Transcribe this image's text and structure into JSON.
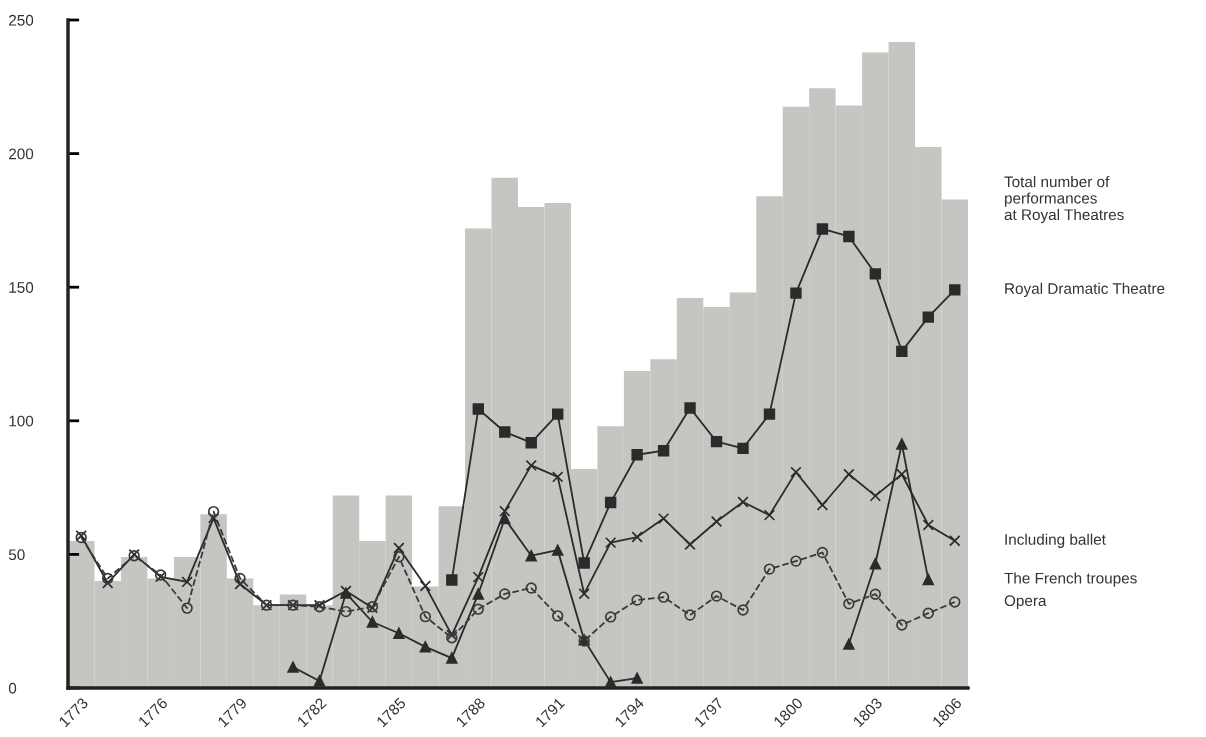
{
  "chart_data": {
    "type": "line",
    "x": [
      1773,
      1774,
      1775,
      1776,
      1777,
      1778,
      1779,
      1780,
      1781,
      1782,
      1783,
      1784,
      1785,
      1786,
      1787,
      1788,
      1789,
      1790,
      1791,
      1792,
      1793,
      1794,
      1795,
      1796,
      1797,
      1798,
      1799,
      1800,
      1801,
      1802,
      1803,
      1804,
      1805,
      1806
    ],
    "xlim": [
      1772.5,
      1806.5
    ],
    "xticks": [
      1773,
      1776,
      1779,
      1782,
      1785,
      1788,
      1791,
      1794,
      1797,
      1800,
      1803,
      1806
    ],
    "ylim": [
      0,
      250
    ],
    "yticks": [
      0,
      50,
      100,
      150,
      200,
      250
    ],
    "grid": false,
    "series": [
      {
        "name": "Total number of\nperformances\nat Royal Theatres",
        "type": "bar",
        "color": "#c4c6c2",
        "values": [
          55,
          40,
          49,
          41,
          49,
          65,
          41,
          31,
          35,
          31,
          72,
          55,
          72,
          38,
          68,
          172,
          191,
          180,
          181.5,
          82,
          98,
          118.6,
          123,
          146,
          142.6,
          148,
          184,
          217.5,
          224.5,
          218,
          237.8,
          241.8,
          202.5,
          182.8
        ]
      },
      {
        "name": "Royal Dramatic Theatre",
        "color": "#2b2b2b",
        "marker": "square",
        "line_style": "solid",
        "values": [
          null,
          null,
          null,
          null,
          null,
          null,
          null,
          null,
          null,
          null,
          null,
          null,
          null,
          null,
          40.4,
          104.4,
          95.8,
          91.8,
          102.5,
          46.8,
          69.4,
          87.3,
          88.8,
          104.8,
          92.2,
          89.7,
          102.5,
          147.8,
          171.8,
          169,
          155,
          126,
          138.8,
          149
        ]
      },
      {
        "name": "Including ballet",
        "color": "#2b2b2b",
        "marker": "cross",
        "line_style": "solid",
        "values": [
          57,
          39.3,
          50,
          41.6,
          39.7,
          63.6,
          38.9,
          31,
          31,
          31,
          36.3,
          30,
          52.4,
          38.2,
          19.8,
          41.5,
          66.2,
          83.3,
          79,
          35.3,
          54.4,
          56.5,
          63.4,
          53.7,
          62.3,
          69.6,
          64.7,
          80.8,
          68.5,
          80,
          71.9,
          80,
          61,
          55.1
        ]
      },
      {
        "name": "The French troupes",
        "color": "#2b2b2b",
        "marker": "triangle",
        "line_style": "solid",
        "values": [
          null,
          null,
          null,
          null,
          null,
          null,
          null,
          null,
          7.8,
          2.6,
          35.5,
          24.7,
          20.5,
          15.4,
          11.2,
          35.2,
          63.4,
          49.5,
          51.6,
          18,
          2.2,
          3.7,
          null,
          null,
          null,
          null,
          null,
          null,
          null,
          16.4,
          46.5,
          91.3,
          40.6,
          null
        ]
      },
      {
        "name": "Opera",
        "color": "#3a3a3a",
        "marker": "circle",
        "line_style": "dashed",
        "values": [
          56.3,
          41,
          49.5,
          42.3,
          29.9,
          66,
          41,
          31,
          31,
          30.4,
          28.6,
          30.4,
          49.1,
          26.7,
          18.8,
          29.5,
          35.2,
          37.4,
          27,
          17.6,
          26.6,
          32.9,
          34,
          27.3,
          34.4,
          29.2,
          44.5,
          47.5,
          50.7,
          31.5,
          35.1,
          23.6,
          28,
          32.2
        ]
      }
    ]
  }
}
